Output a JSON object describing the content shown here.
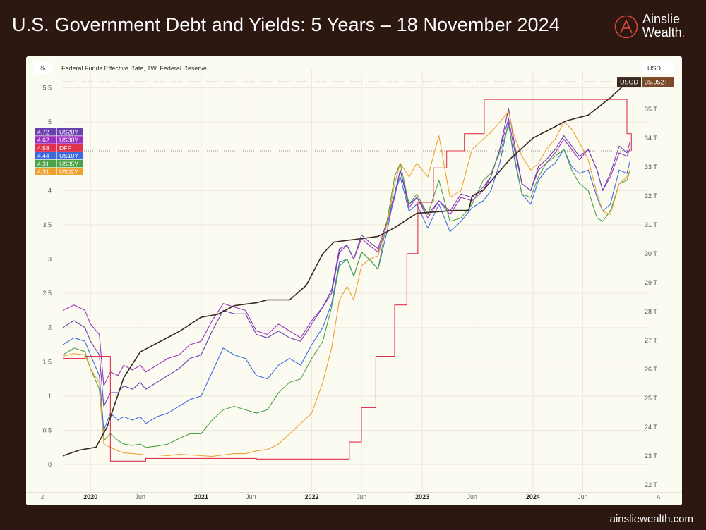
{
  "header": {
    "title": "U.S. Government Debt and Yields: 5 Years – 18 November 2024",
    "logo_line1": "Ainslie",
    "logo_line2": "Wealth",
    "logo_dot": "."
  },
  "footer": {
    "url": "ainsliewealth.com"
  },
  "colors": {
    "background": "#2c1711",
    "plot_bg": "#fcfbf1",
    "US20Y": "#6a3fb0",
    "US30Y": "#9b30c0",
    "DFF": "#e0334d",
    "US10Y": "#3c6be0",
    "US05Y": "#4ba247",
    "US02Y": "#f0a030",
    "USGD": "#3a2a22",
    "logo_accent": "#d6453a"
  },
  "chart_data": {
    "type": "line",
    "left_unit": "%",
    "right_unit": "USD",
    "series_label": "Federal Funds Effective Rate, 1W, Federal Reserve",
    "x_range": [
      2019.75,
      2024.92
    ],
    "left_ylim": [
      -0.4,
      5.65
    ],
    "right_ylim": [
      21.75,
      36.1
    ],
    "left_ticks": [
      "0",
      "0.5",
      "1",
      "1.5",
      "2",
      "2.5",
      "3",
      "3.5",
      "4",
      "4.5",
      "5",
      "5.5"
    ],
    "right_ticks": [
      "22 T",
      "23 T",
      "24 T",
      "25 T",
      "26 T",
      "27 T",
      "28 T",
      "29 T",
      "30 T",
      "31 T",
      "32 T",
      "33 T",
      "34 T",
      "35 T"
    ],
    "x_ticks": [
      {
        "label": "2020",
        "x": 2020.0,
        "bold": true
      },
      {
        "label": "Jun",
        "x": 2020.45,
        "bold": false
      },
      {
        "label": "2021",
        "x": 2021.0,
        "bold": true
      },
      {
        "label": "Jun",
        "x": 2021.45,
        "bold": false
      },
      {
        "label": "2022",
        "x": 2022.0,
        "bold": true
      },
      {
        "label": "Jun",
        "x": 2022.45,
        "bold": false
      },
      {
        "label": "2023",
        "x": 2023.0,
        "bold": true
      },
      {
        "label": "Jun",
        "x": 2023.45,
        "bold": false
      },
      {
        "label": "2024",
        "x": 2024.0,
        "bold": true
      },
      {
        "label": "Jun",
        "x": 2024.45,
        "bold": false
      }
    ],
    "corner_left": "Z",
    "corner_right": "A",
    "legend": [
      {
        "value": "4.72",
        "name": "US20Y",
        "color": "#6a3fb0"
      },
      {
        "value": "4.62",
        "name": "US30Y",
        "color": "#9b30c0"
      },
      {
        "value": "4.58",
        "name": "DFF",
        "color": "#e0334d"
      },
      {
        "value": "4.44",
        "name": "US10Y",
        "color": "#3c6be0"
      },
      {
        "value": "4.31",
        "name": "US05Y",
        "color": "#4ba247"
      },
      {
        "value": "4.31",
        "name": "US02Y",
        "color": "#f0a030"
      }
    ],
    "debt_label": {
      "name": "USGD",
      "value": "35.952T"
    },
    "series": [
      {
        "name": "US30Y",
        "axis": "left",
        "color": "#9b30c0",
        "x": [
          2019.75,
          2019.85,
          2019.95,
          2020.0,
          2020.08,
          2020.12,
          2020.18,
          2020.25,
          2020.3,
          2020.38,
          2020.45,
          2020.5,
          2020.6,
          2020.7,
          2020.8,
          2020.9,
          2021.0,
          2021.1,
          2021.2,
          2021.3,
          2021.4,
          2021.5,
          2021.6,
          2021.7,
          2021.8,
          2021.9,
          2022.0,
          2022.1,
          2022.18,
          2022.25,
          2022.32,
          2022.38,
          2022.45,
          2022.52,
          2022.6,
          2022.68,
          2022.75,
          2022.8,
          2022.88,
          2022.95,
          2023.05,
          2023.15,
          2023.25,
          2023.35,
          2023.45,
          2023.55,
          2023.62,
          2023.7,
          2023.78,
          2023.82,
          2023.9,
          2023.98,
          2024.05,
          2024.12,
          2024.2,
          2024.28,
          2024.35,
          2024.42,
          2024.5,
          2024.58,
          2024.63,
          2024.7,
          2024.78,
          2024.85,
          2024.88
        ],
        "y": [
          2.25,
          2.33,
          2.25,
          2.05,
          1.9,
          1.15,
          1.35,
          1.3,
          1.45,
          1.38,
          1.45,
          1.35,
          1.45,
          1.55,
          1.6,
          1.75,
          1.8,
          2.1,
          2.35,
          2.3,
          2.25,
          1.95,
          1.9,
          2.05,
          1.95,
          1.85,
          2.1,
          2.3,
          2.5,
          3.1,
          3.2,
          3.0,
          3.3,
          3.2,
          3.1,
          3.5,
          3.9,
          4.3,
          3.75,
          3.9,
          3.6,
          3.85,
          3.65,
          3.9,
          3.85,
          4.0,
          4.2,
          4.6,
          5.05,
          4.7,
          4.1,
          4.0,
          4.3,
          4.4,
          4.55,
          4.75,
          4.6,
          4.45,
          4.6,
          4.3,
          4.0,
          4.2,
          4.55,
          4.5,
          4.62
        ]
      },
      {
        "name": "US20Y",
        "axis": "left",
        "color": "#6a3fb0",
        "x": [
          2019.75,
          2019.85,
          2019.95,
          2020.0,
          2020.08,
          2020.12,
          2020.18,
          2020.25,
          2020.3,
          2020.38,
          2020.45,
          2020.5,
          2020.6,
          2020.7,
          2020.8,
          2020.9,
          2021.0,
          2021.1,
          2021.2,
          2021.3,
          2021.4,
          2021.5,
          2021.6,
          2021.7,
          2021.8,
          2021.9,
          2022.0,
          2022.1,
          2022.18,
          2022.25,
          2022.32,
          2022.38,
          2022.45,
          2022.52,
          2022.6,
          2022.68,
          2022.75,
          2022.8,
          2022.88,
          2022.95,
          2023.05,
          2023.15,
          2023.25,
          2023.35,
          2023.45,
          2023.55,
          2023.62,
          2023.7,
          2023.78,
          2023.82,
          2023.9,
          2023.98,
          2024.05,
          2024.12,
          2024.2,
          2024.28,
          2024.35,
          2024.42,
          2024.5,
          2024.58,
          2024.63,
          2024.7,
          2024.78,
          2024.85,
          2024.88
        ],
        "y": [
          2.0,
          2.1,
          2.0,
          1.8,
          1.6,
          0.85,
          1.05,
          1.05,
          1.15,
          1.1,
          1.2,
          1.1,
          1.2,
          1.3,
          1.4,
          1.55,
          1.6,
          1.95,
          2.25,
          2.2,
          2.2,
          1.9,
          1.85,
          1.95,
          1.85,
          1.8,
          2.05,
          2.3,
          2.55,
          3.15,
          3.2,
          3.0,
          3.35,
          3.25,
          3.15,
          3.55,
          3.95,
          4.3,
          3.8,
          3.9,
          3.65,
          3.85,
          3.7,
          3.95,
          3.9,
          4.05,
          4.2,
          4.6,
          5.2,
          4.8,
          4.1,
          4.0,
          4.35,
          4.45,
          4.6,
          4.8,
          4.65,
          4.5,
          4.6,
          4.3,
          4.0,
          4.25,
          4.65,
          4.55,
          4.72
        ]
      },
      {
        "name": "US10Y",
        "axis": "left",
        "color": "#3c6be0",
        "x": [
          2019.75,
          2019.85,
          2019.95,
          2020.0,
          2020.08,
          2020.12,
          2020.18,
          2020.25,
          2020.3,
          2020.38,
          2020.45,
          2020.5,
          2020.6,
          2020.7,
          2020.8,
          2020.9,
          2021.0,
          2021.1,
          2021.2,
          2021.3,
          2021.4,
          2021.5,
          2021.6,
          2021.7,
          2021.8,
          2021.9,
          2022.0,
          2022.1,
          2022.18,
          2022.25,
          2022.32,
          2022.38,
          2022.45,
          2022.52,
          2022.6,
          2022.68,
          2022.75,
          2022.8,
          2022.88,
          2022.95,
          2023.05,
          2023.15,
          2023.25,
          2023.35,
          2023.45,
          2023.55,
          2023.62,
          2023.7,
          2023.78,
          2023.82,
          2023.9,
          2023.98,
          2024.05,
          2024.12,
          2024.2,
          2024.28,
          2024.35,
          2024.42,
          2024.5,
          2024.58,
          2024.63,
          2024.7,
          2024.78,
          2024.85,
          2024.88
        ],
        "y": [
          1.75,
          1.85,
          1.8,
          1.6,
          1.3,
          0.5,
          0.75,
          0.65,
          0.7,
          0.65,
          0.7,
          0.6,
          0.7,
          0.75,
          0.85,
          0.95,
          1.0,
          1.35,
          1.7,
          1.6,
          1.55,
          1.3,
          1.25,
          1.45,
          1.55,
          1.45,
          1.75,
          2.0,
          2.35,
          2.95,
          3.0,
          2.75,
          3.1,
          3.0,
          2.85,
          3.4,
          3.95,
          4.2,
          3.7,
          3.8,
          3.45,
          3.8,
          3.4,
          3.55,
          3.75,
          3.85,
          4.0,
          4.4,
          5.0,
          4.55,
          3.95,
          3.8,
          4.15,
          4.3,
          4.4,
          4.6,
          4.35,
          4.25,
          4.3,
          3.9,
          3.7,
          3.8,
          4.3,
          4.25,
          4.44
        ]
      },
      {
        "name": "US05Y",
        "axis": "left",
        "color": "#4ba247",
        "x": [
          2019.75,
          2019.85,
          2019.95,
          2020.0,
          2020.08,
          2020.12,
          2020.18,
          2020.25,
          2020.3,
          2020.38,
          2020.45,
          2020.5,
          2020.6,
          2020.7,
          2020.8,
          2020.9,
          2021.0,
          2021.1,
          2021.2,
          2021.3,
          2021.4,
          2021.5,
          2021.6,
          2021.7,
          2021.8,
          2021.9,
          2022.0,
          2022.1,
          2022.18,
          2022.25,
          2022.32,
          2022.38,
          2022.45,
          2022.52,
          2022.6,
          2022.68,
          2022.75,
          2022.8,
          2022.88,
          2022.95,
          2023.05,
          2023.15,
          2023.25,
          2023.35,
          2023.45,
          2023.55,
          2023.62,
          2023.7,
          2023.78,
          2023.82,
          2023.9,
          2023.98,
          2024.05,
          2024.12,
          2024.2,
          2024.28,
          2024.35,
          2024.42,
          2024.5,
          2024.58,
          2024.63,
          2024.7,
          2024.78,
          2024.85,
          2024.88
        ],
        "y": [
          1.6,
          1.7,
          1.65,
          1.4,
          1.1,
          0.35,
          0.45,
          0.35,
          0.3,
          0.28,
          0.3,
          0.25,
          0.27,
          0.3,
          0.38,
          0.45,
          0.45,
          0.65,
          0.8,
          0.85,
          0.8,
          0.75,
          0.8,
          1.05,
          1.2,
          1.25,
          1.55,
          1.8,
          2.3,
          2.9,
          3.0,
          2.75,
          3.1,
          3.0,
          2.85,
          3.55,
          4.2,
          4.4,
          3.8,
          3.95,
          3.65,
          4.15,
          3.55,
          3.6,
          3.8,
          4.15,
          4.25,
          4.55,
          4.95,
          4.6,
          3.95,
          3.9,
          4.2,
          4.4,
          4.5,
          4.6,
          4.3,
          4.1,
          4.0,
          3.6,
          3.55,
          3.7,
          4.1,
          4.15,
          4.31
        ]
      },
      {
        "name": "US02Y",
        "axis": "left",
        "color": "#f0a030",
        "x": [
          2019.75,
          2019.85,
          2019.95,
          2020.0,
          2020.08,
          2020.12,
          2020.18,
          2020.25,
          2020.3,
          2020.38,
          2020.45,
          2020.5,
          2020.6,
          2020.7,
          2020.8,
          2020.9,
          2021.0,
          2021.1,
          2021.2,
          2021.3,
          2021.4,
          2021.5,
          2021.6,
          2021.7,
          2021.8,
          2021.9,
          2022.0,
          2022.1,
          2022.18,
          2022.25,
          2022.32,
          2022.38,
          2022.45,
          2022.52,
          2022.6,
          2022.68,
          2022.75,
          2022.8,
          2022.88,
          2022.95,
          2023.05,
          2023.15,
          2023.25,
          2023.35,
          2023.45,
          2023.55,
          2023.62,
          2023.7,
          2023.78,
          2023.82,
          2023.9,
          2023.98,
          2024.05,
          2024.12,
          2024.2,
          2024.28,
          2024.35,
          2024.42,
          2024.5,
          2024.58,
          2024.63,
          2024.7,
          2024.78,
          2024.85,
          2024.88
        ],
        "y": [
          1.58,
          1.62,
          1.6,
          1.4,
          1.2,
          0.3,
          0.25,
          0.2,
          0.17,
          0.16,
          0.15,
          0.14,
          0.14,
          0.13,
          0.15,
          0.14,
          0.13,
          0.12,
          0.14,
          0.16,
          0.16,
          0.2,
          0.22,
          0.3,
          0.45,
          0.6,
          0.75,
          1.2,
          1.7,
          2.4,
          2.6,
          2.4,
          2.9,
          3.0,
          3.05,
          3.5,
          4.1,
          4.4,
          4.2,
          4.4,
          4.2,
          4.8,
          3.9,
          4.0,
          4.6,
          4.75,
          4.85,
          5.0,
          5.15,
          4.85,
          4.5,
          4.3,
          4.4,
          4.6,
          4.75,
          5.0,
          4.9,
          4.7,
          4.45,
          3.95,
          3.7,
          3.65,
          4.1,
          4.2,
          4.31
        ]
      },
      {
        "name": "DFF",
        "axis": "left",
        "color": "#e0334d",
        "step": true,
        "x": [
          2019.75,
          2019.85,
          2019.95,
          2020.14,
          2020.18,
          2020.25,
          2020.5,
          2021.0,
          2021.5,
          2022.18,
          2022.34,
          2022.45,
          2022.58,
          2022.75,
          2022.86,
          2022.96,
          2023.1,
          2023.22,
          2023.38,
          2023.56,
          2024.71,
          2024.85,
          2024.89
        ],
        "y": [
          1.55,
          1.55,
          1.58,
          1.58,
          0.05,
          0.05,
          0.09,
          0.09,
          0.08,
          0.08,
          0.33,
          0.83,
          1.58,
          2.33,
          3.08,
          3.83,
          4.33,
          4.58,
          4.83,
          5.33,
          5.33,
          4.83,
          4.58
        ]
      },
      {
        "name": "USGD",
        "axis": "right",
        "color": "#3a2a22",
        "x": [
          2019.75,
          2019.9,
          2020.05,
          2020.15,
          2020.3,
          2020.45,
          2020.6,
          2020.8,
          2021.0,
          2021.15,
          2021.3,
          2021.5,
          2021.6,
          2021.8,
          2021.95,
          2022.1,
          2022.2,
          2022.4,
          2022.6,
          2022.75,
          2022.95,
          2023.3,
          2023.42,
          2023.45,
          2023.55,
          2023.8,
          2024.0,
          2024.3,
          2024.5,
          2024.7,
          2024.84,
          2024.88
        ],
        "y": [
          23.0,
          23.2,
          23.3,
          24.0,
          25.7,
          26.6,
          26.9,
          27.3,
          27.8,
          27.9,
          28.2,
          28.3,
          28.4,
          28.4,
          28.9,
          30.0,
          30.4,
          30.5,
          30.6,
          30.9,
          31.4,
          31.5,
          31.5,
          32.0,
          32.2,
          33.3,
          34.0,
          34.6,
          34.8,
          35.4,
          35.9,
          35.952
        ]
      }
    ]
  }
}
